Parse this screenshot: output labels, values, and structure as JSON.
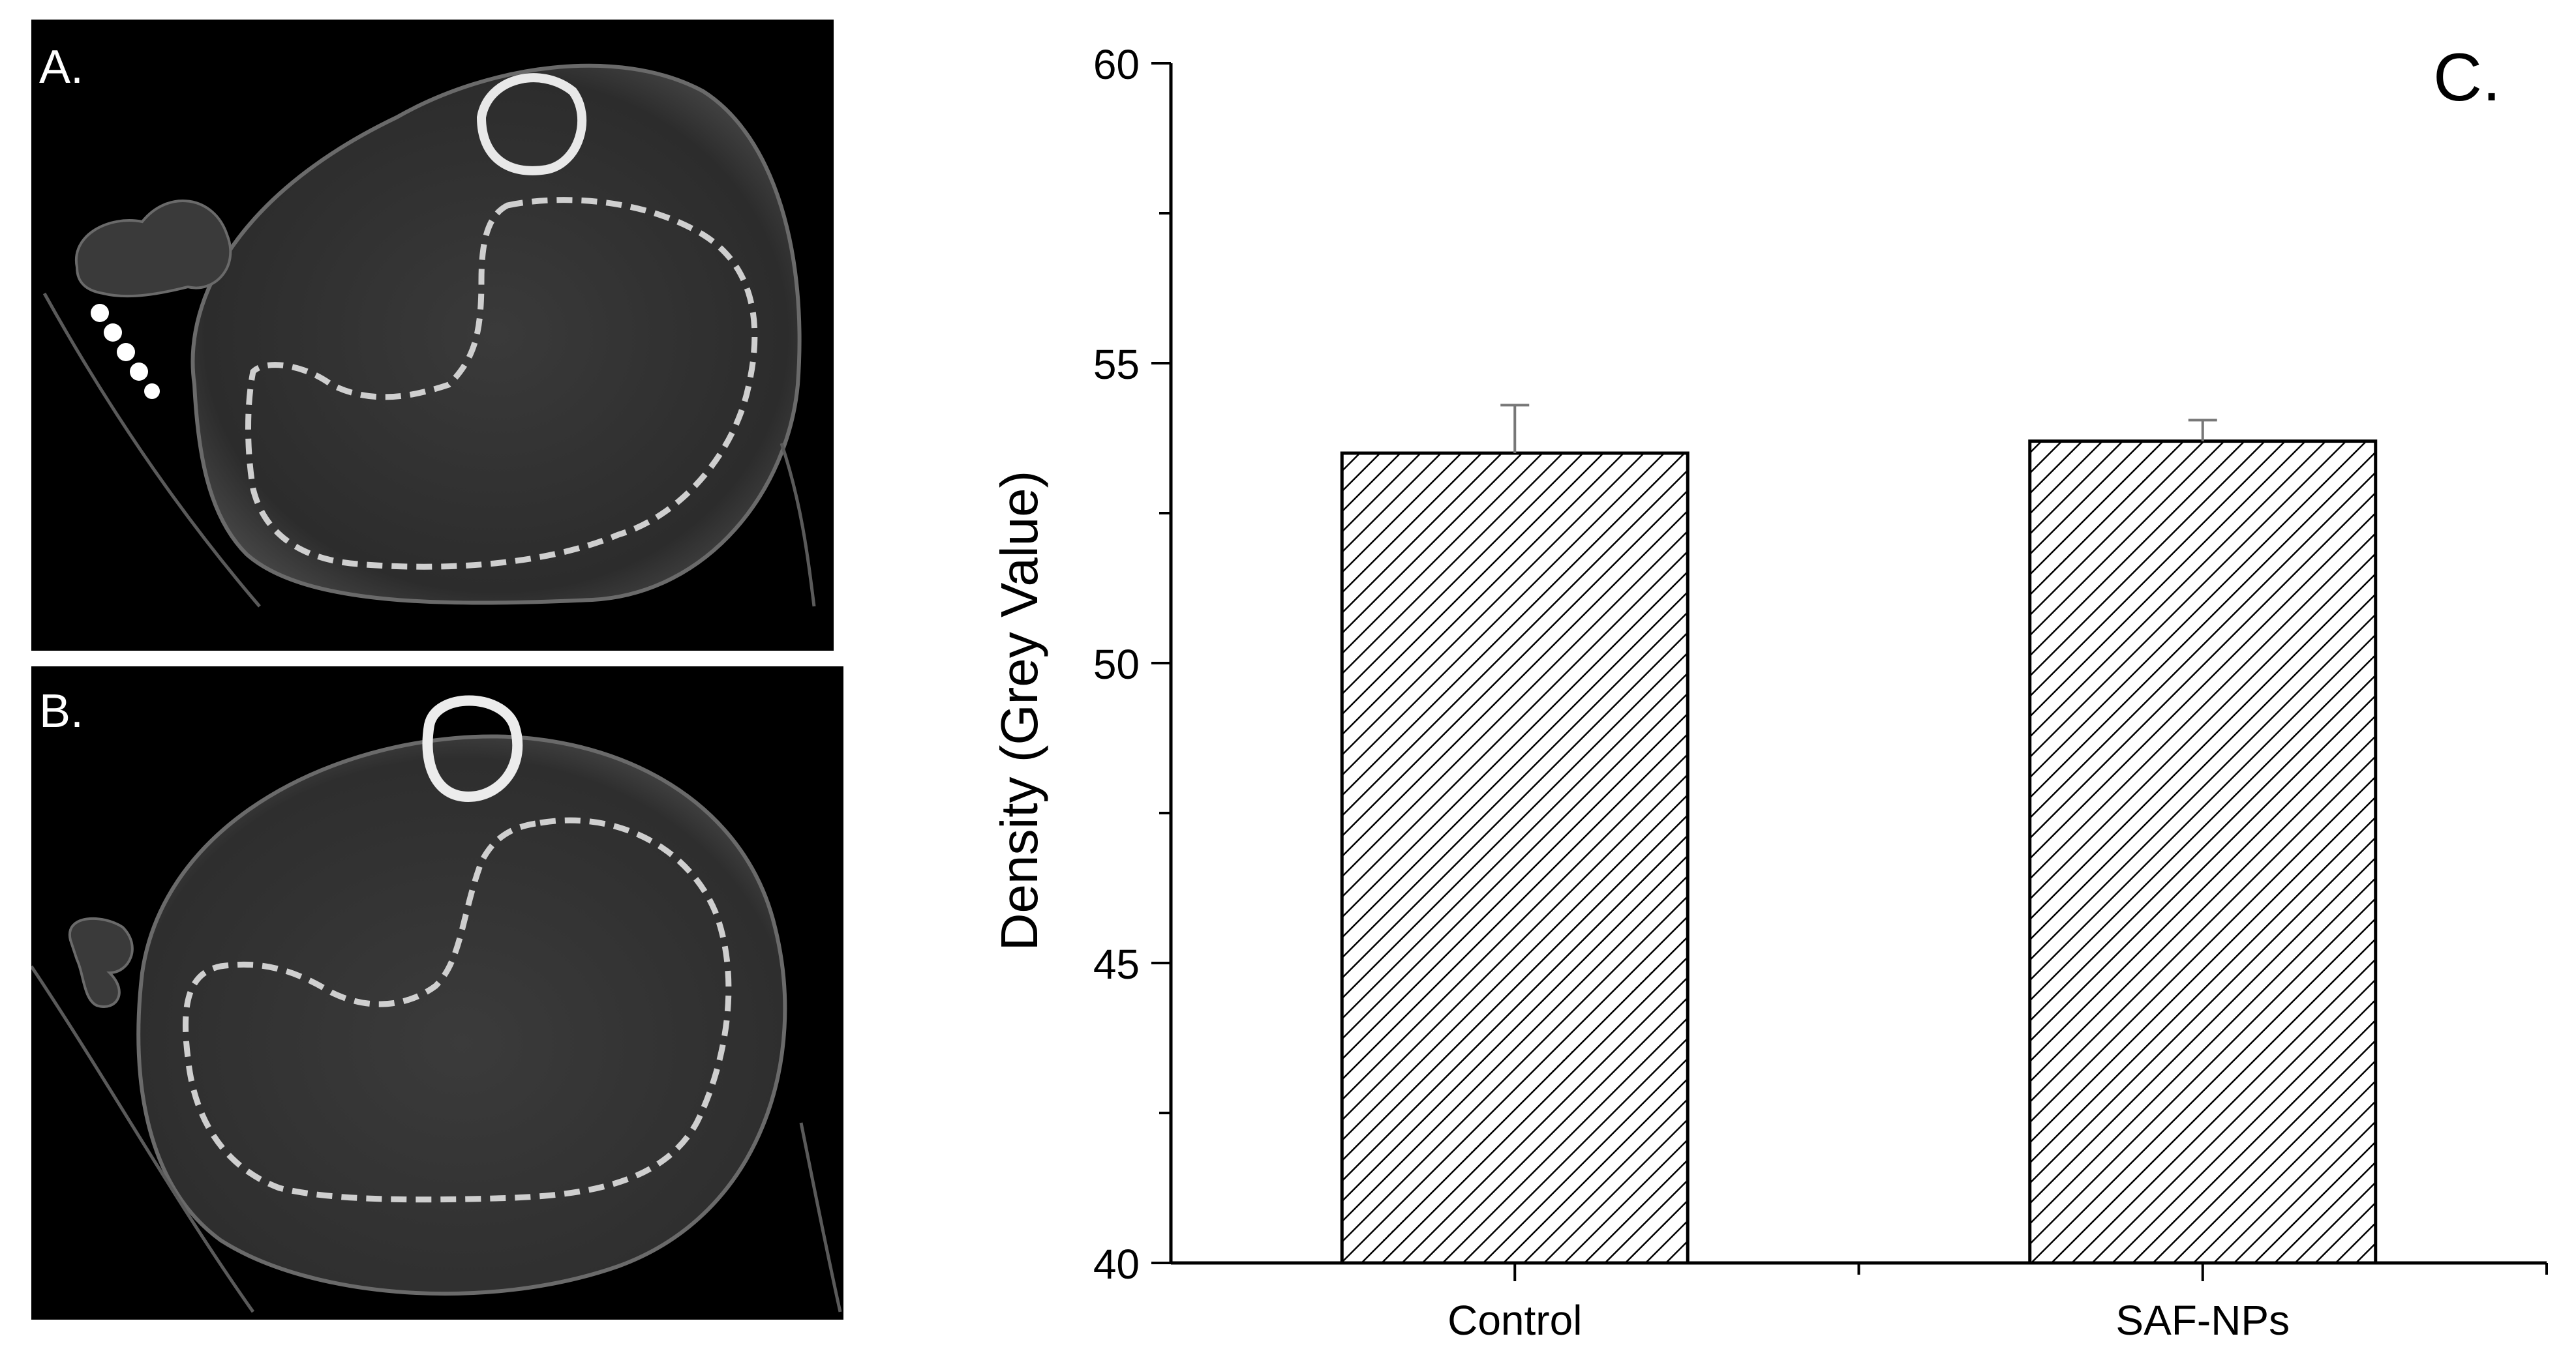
{
  "panels": {
    "a_label": "A.",
    "b_label": "B.",
    "c_label": "C."
  },
  "chart_data": {
    "type": "bar",
    "categories": [
      "Control",
      "SAF-NPs"
    ],
    "values": [
      53.5,
      53.7
    ],
    "errors": [
      0.8,
      0.35
    ],
    "title": "",
    "xlabel": "",
    "ylabel": "Density (Grey Value)",
    "ylim": [
      40,
      60
    ],
    "yticks": [
      40,
      45,
      50,
      55,
      60
    ],
    "bar_fill": "hatched",
    "bar_edge_color": "#000000",
    "grid": false,
    "legend": "none"
  }
}
